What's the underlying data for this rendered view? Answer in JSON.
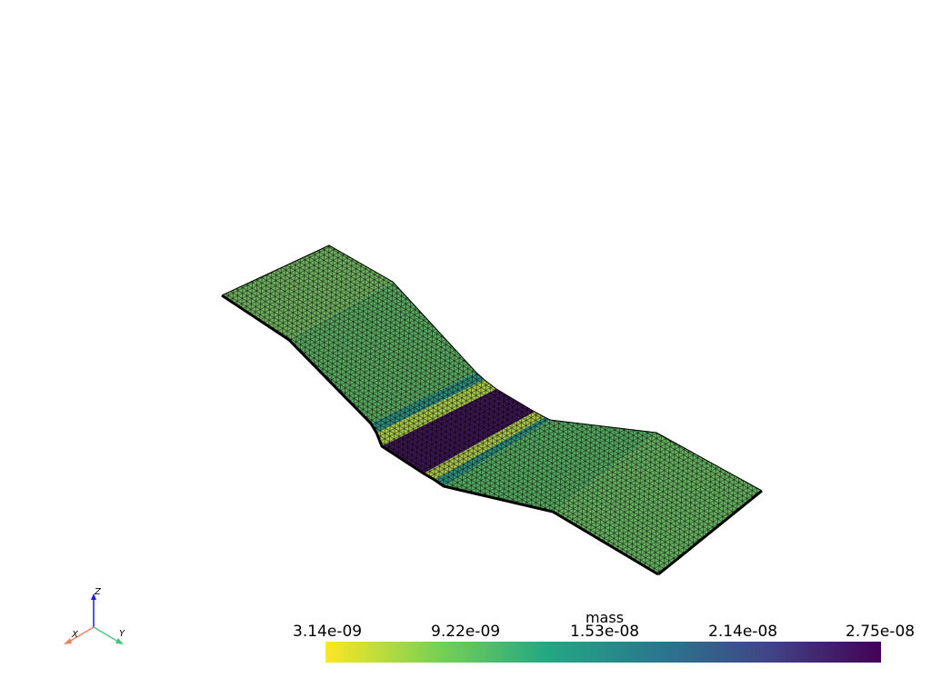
{
  "scalar_bar": {
    "title": "mass",
    "ticks": [
      "3.14e-09",
      "9.22e-09",
      "1.53e-08",
      "2.14e-08",
      "2.75e-08"
    ],
    "colormap": "viridis (reversed)",
    "colors": [
      "#fde725",
      "#7ad151",
      "#22a884",
      "#2a788e",
      "#414487",
      "#440154"
    ]
  },
  "orientation_axes": {
    "x_label": "X",
    "y_label": "Y",
    "z_label": "Z",
    "x_color": "#f08060",
    "y_color": "#4ec080",
    "z_color": "#1a1adc"
  },
  "mesh": {
    "edge_color": "#000000",
    "bands": [
      {
        "name": "left-flat",
        "color": "#6fb060"
      },
      {
        "name": "left-slope",
        "color": "#5aa860"
      },
      {
        "name": "teal-band",
        "color": "#2e8c7c"
      },
      {
        "name": "yellow-band-1",
        "color": "#a6c84a"
      },
      {
        "name": "purple-band",
        "color": "#3c1650"
      },
      {
        "name": "yellow-band-2",
        "color": "#a8c44a"
      },
      {
        "name": "teal-band-2",
        "color": "#2e8c7c"
      },
      {
        "name": "right-slope",
        "color": "#55a860"
      },
      {
        "name": "right-flat",
        "color": "#66b060"
      }
    ]
  }
}
